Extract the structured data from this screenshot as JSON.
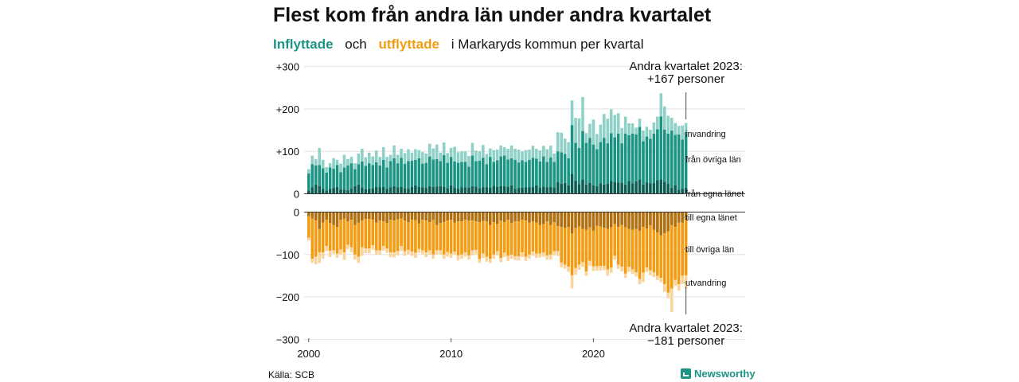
{
  "title": "Flest kom från andra län under andra kvartalet",
  "subtitle": {
    "in_word": "Inflyttade",
    "and_word": "och",
    "out_word": "utflyttade",
    "rest": "i Markaryds  kommun  per  kvartal"
  },
  "source": "Källa: SCB",
  "brand": "Newsworthy",
  "colors": {
    "in_own": "#0d5d53",
    "in_other": "#1b9484",
    "in_immig": "#8fd1c6",
    "out_own": "#b0700f",
    "out_other": "#f39c12",
    "out_emig": "#fad49a"
  },
  "chart_data": [
    {
      "type": "bar",
      "title": "",
      "stacked": true,
      "x_start_year": 2000,
      "x_ticks": [
        "2000",
        "2010",
        "2020"
      ],
      "y_ticks": [
        "+300",
        "+200",
        "+100",
        "0"
      ],
      "ylim": [
        0,
        300
      ],
      "grid": true,
      "highlight_label": [
        "Andra kvartalet 2023:",
        "+167 personer"
      ],
      "series": [
        {
          "name": "från egna länet",
          "values": [
            8,
            15,
            22,
            18,
            12,
            8,
            12,
            14,
            16,
            11,
            10,
            9,
            12,
            18,
            22,
            14,
            11,
            12,
            13,
            16,
            15,
            16,
            12,
            15,
            18,
            15,
            16,
            13,
            12,
            16,
            20,
            16,
            15,
            14,
            18,
            16,
            17,
            18,
            16,
            13,
            20,
            14,
            12,
            15,
            15,
            14,
            18,
            17,
            13,
            15,
            15,
            14,
            19,
            16,
            18,
            18,
            16,
            20,
            12,
            14,
            14,
            15,
            15,
            16,
            20,
            14,
            17,
            15,
            16,
            14,
            28,
            24,
            26,
            20,
            47,
            30,
            23,
            34,
            22,
            26,
            20,
            18,
            25,
            22,
            24,
            30,
            28,
            27,
            26,
            22,
            30,
            25,
            29,
            34,
            22,
            27,
            25,
            26,
            32,
            34,
            28,
            24,
            14,
            21,
            10,
            12,
            14
          ]
        },
        {
          "name": "från övriga län",
          "values": [
            40,
            55,
            45,
            50,
            48,
            42,
            50,
            45,
            52,
            40,
            52,
            58,
            60,
            40,
            48,
            62,
            55,
            60,
            55,
            58,
            52,
            64,
            50,
            62,
            66,
            57,
            69,
            58,
            65,
            62,
            60,
            68,
            56,
            59,
            70,
            65,
            65,
            59,
            75,
            60,
            67,
            62,
            61,
            60,
            60,
            50,
            72,
            60,
            65,
            70,
            55,
            73,
            56,
            63,
            70,
            72,
            65,
            64,
            68,
            60,
            65,
            60,
            65,
            69,
            63,
            62,
            71,
            60,
            70,
            61,
            72,
            74,
            68,
            64,
            115,
            90,
            85,
            114,
            98,
            106,
            96,
            87,
            97,
            110,
            95,
            113,
            105,
            115,
            93,
            120,
            108,
            117,
            111,
            124,
            102,
            108,
            105,
            116,
            120,
            148,
            123,
            118,
            135,
            118,
            130,
            116,
            132
          ]
        },
        {
          "name": "invandring",
          "values": [
            10,
            20,
            15,
            40,
            20,
            13,
            10,
            25,
            12,
            20,
            30,
            15,
            15,
            14,
            25,
            30,
            20,
            25,
            20,
            28,
            20,
            30,
            25,
            15,
            30,
            20,
            21,
            25,
            28,
            19,
            25,
            19,
            27,
            22,
            30,
            26,
            34,
            20,
            30,
            23,
            21,
            35,
            25,
            25,
            25,
            25,
            30,
            25,
            22,
            30,
            24,
            20,
            28,
            25,
            26,
            20,
            25,
            30,
            26,
            30,
            21,
            28,
            24,
            28,
            23,
            26,
            25,
            30,
            28,
            20,
            45,
            46,
            36,
            38,
            58,
            59,
            70,
            80,
            23,
            33,
            59,
            36,
            41,
            56,
            58,
            56,
            53,
            48,
            36,
            40,
            28,
            24,
            16,
            19,
            25,
            23,
            21,
            26,
            30,
            55,
            55,
            42,
            30,
            28,
            20,
            33,
            21
          ]
        }
      ]
    },
    {
      "type": "bar",
      "title": "",
      "stacked": true,
      "x_start_year": 2000,
      "x_ticks": [
        "2000",
        "2010",
        "2020"
      ],
      "y_ticks": [
        "0",
        "−100",
        "−200",
        "−300"
      ],
      "ylim": [
        -300,
        0
      ],
      "grid": true,
      "highlight_label": [
        "Andra kvartalet 2023:",
        "−181 personer"
      ],
      "series": [
        {
          "name": "till egna länet",
          "values": [
            -10,
            -15,
            -20,
            -40,
            -25,
            -18,
            -26,
            -30,
            -35,
            -18,
            -15,
            -22,
            -18,
            -30,
            -25,
            -20,
            -16,
            -16,
            -18,
            -25,
            -20,
            -22,
            -26,
            -18,
            -20,
            -17,
            -15,
            -20,
            -24,
            -18,
            -19,
            -27,
            -18,
            -20,
            -24,
            -19,
            -30,
            -26,
            -24,
            -20,
            -18,
            -25,
            -22,
            -22,
            -18,
            -20,
            -20,
            -22,
            -24,
            -21,
            -22,
            -30,
            -24,
            -28,
            -20,
            -24,
            -18,
            -26,
            -22,
            -22,
            -18,
            -20,
            -25,
            -22,
            -25,
            -30,
            -28,
            -22,
            -30,
            -24,
            -33,
            -35,
            -38,
            -35,
            -51,
            -38,
            -34,
            -40,
            -42,
            -36,
            -44,
            -32,
            -34,
            -37,
            -40,
            -36,
            -28,
            -35,
            -30,
            -36,
            -40,
            -42,
            -40,
            -44,
            -35,
            -39,
            -31,
            -42,
            -48,
            -55,
            -50,
            -45,
            -30,
            -35,
            -25,
            -25,
            -18
          ]
        },
        {
          "name": "till övriga län",
          "values": [
            -50,
            -95,
            -85,
            -55,
            -70,
            -62,
            -65,
            -60,
            -63,
            -70,
            -80,
            -55,
            -65,
            -70,
            -80,
            -63,
            -70,
            -70,
            -60,
            -65,
            -70,
            -58,
            -60,
            -77,
            -75,
            -75,
            -65,
            -72,
            -65,
            -75,
            -77,
            -60,
            -72,
            -75,
            -66,
            -81,
            -60,
            -64,
            -76,
            -74,
            -80,
            -68,
            -80,
            -78,
            -77,
            -82,
            -70,
            -67,
            -87,
            -77,
            -83,
            -80,
            -76,
            -64,
            -88,
            -72,
            -85,
            -74,
            -82,
            -82,
            -77,
            -85,
            -75,
            -71,
            -73,
            -68,
            -67,
            -80,
            -70,
            -68,
            -59,
            -84,
            -86,
            -94,
            -98,
            -94,
            -90,
            -78,
            -98,
            -79,
            -84,
            -96,
            -93,
            -90,
            -95,
            -95,
            -75,
            -89,
            -99,
            -109,
            -89,
            -93,
            -102,
            -114,
            -108,
            -92,
            -106,
            -100,
            -102,
            -100,
            -120,
            -145,
            -150,
            -125,
            -145,
            -125,
            -131
          ]
        },
        {
          "name": "utvandring",
          "values": [
            -7,
            -10,
            -18,
            -25,
            -15,
            -12,
            -15,
            -8,
            -10,
            -12,
            -18,
            -10,
            -12,
            -12,
            -15,
            -20,
            -11,
            -11,
            -10,
            -10,
            -10,
            -11,
            -10,
            -11,
            -12,
            -10,
            -12,
            -11,
            -10,
            -10,
            -12,
            -9,
            -10,
            -11,
            -10,
            -10,
            -10,
            -10,
            -10,
            -11,
            -10,
            -8,
            -12,
            -10,
            -10,
            -10,
            -12,
            -10,
            -9,
            -10,
            -12,
            -10,
            -10,
            -10,
            -10,
            -10,
            -12,
            -10,
            -9,
            -10,
            -11,
            -10,
            -10,
            -10,
            -10,
            -9,
            -10,
            -10,
            -12,
            -10,
            -11,
            -11,
            -9,
            -12,
            -31,
            -16,
            -12,
            -11,
            -10,
            -12,
            -11,
            -10,
            -11,
            -10,
            -15,
            -12,
            -9,
            -10,
            -11,
            -10,
            -12,
            -11,
            -10,
            -12,
            -22,
            -10,
            -12,
            -11,
            -10,
            -10,
            -18,
            -13,
            -55,
            -14,
            -15,
            -20,
            -32
          ]
        }
      ]
    }
  ]
}
